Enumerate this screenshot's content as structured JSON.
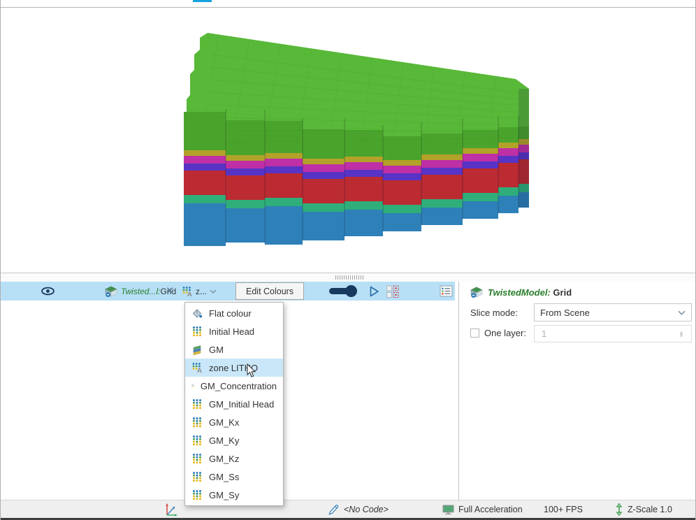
{
  "window": {
    "tab_indicator_color": "#18a3e0"
  },
  "scene_toolbar": {
    "object_name": "Twisted...l:",
    "object_type": " Grid",
    "object_name_color": "#2a7e2a",
    "colour_by_abbrev": "z...",
    "edit_colours_label": "Edit Colours",
    "background_color": "#b7e0f6",
    "accent_navy": "#173a5e"
  },
  "colour_dropdown": {
    "items": [
      {
        "label": "Flat colour"
      },
      {
        "label": "Initial Head"
      },
      {
        "label": "GM"
      },
      {
        "label": "zone LITHO"
      },
      {
        "label": "GM_Concentration"
      },
      {
        "label": "GM_Initial Head"
      },
      {
        "label": "GM_Kx"
      },
      {
        "label": "GM_Ky"
      },
      {
        "label": "GM_Kz"
      },
      {
        "label": "GM_Ss"
      },
      {
        "label": "GM_Sy"
      }
    ],
    "highlighted_item": "zone LITHO",
    "highlight_color": "#c9e7f8"
  },
  "properties_panel": {
    "title_model": "TwistedModel:",
    "title_suffix": " Grid",
    "title_model_color": "#2a7e2a",
    "slice_mode_label": "Slice mode:",
    "slice_mode_value": "From Scene",
    "one_layer_label": "One layer:",
    "one_layer_value": "1",
    "one_layer_checked": false
  },
  "status_bar": {
    "code_label": "<No Code>",
    "acceleration_label": "Full Acceleration",
    "fps_label": "100+ FPS",
    "z_scale_label": "Z-Scale 1.0"
  },
  "model_3d": {
    "colour_by": "zone LITHO",
    "top_color": "#58b838",
    "front_green": "#4aa42c",
    "layers": [
      {
        "name": "olive",
        "color": "#b3a229",
        "h": 8
      },
      {
        "name": "magenta",
        "color": "#bf2fa6",
        "h": 11
      },
      {
        "name": "purple",
        "color": "#5734c6",
        "h": 10
      },
      {
        "name": "red",
        "color": "#bb2b31",
        "h": 35
      },
      {
        "name": "teal",
        "color": "#2fae7a",
        "h": 12
      },
      {
        "name": "blue",
        "color": "#2e80b8",
        "h": 0
      }
    ]
  }
}
